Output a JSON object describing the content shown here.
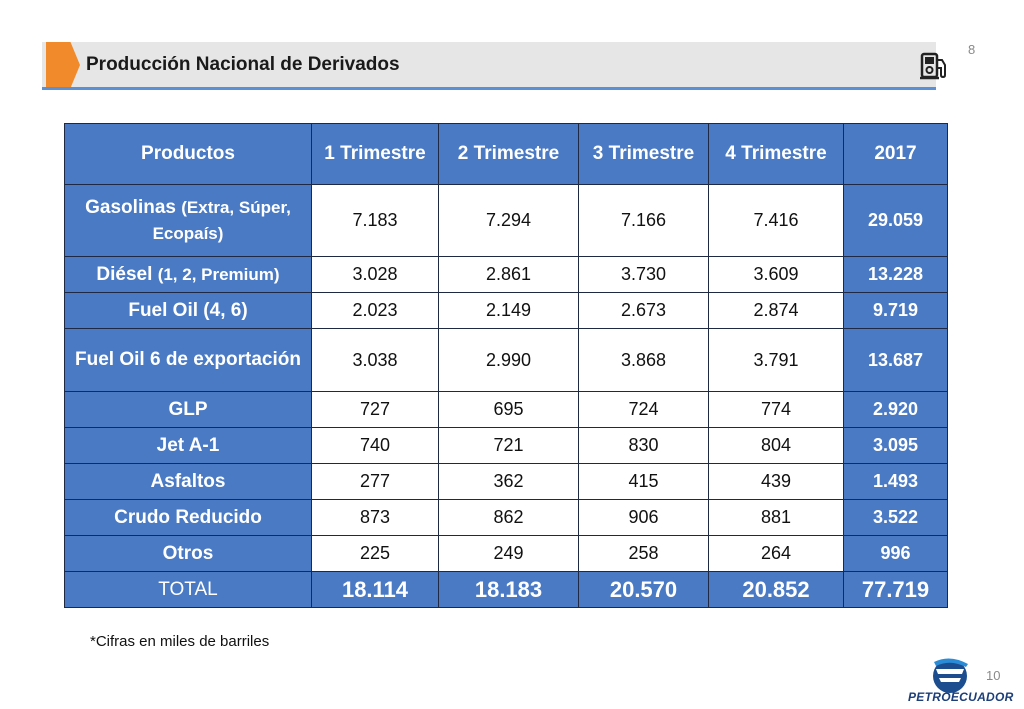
{
  "header": {
    "title": "Producción Nacional de Derivados",
    "page_number": "8",
    "icon": "fuel-pump-icon",
    "accent_color": "#f08a2a",
    "bar_color": "#e6e6e6"
  },
  "table": {
    "header_color": "#4a7ac4",
    "columns": [
      "Productos",
      "1 Trimestre",
      "2 Trimestre",
      "3 Trimestre",
      "4 Trimestre",
      "2017"
    ],
    "rows": [
      {
        "product": "Gasolinas",
        "product_detail": "(Extra, Súper, Ecopaís)",
        "q1": "7.183",
        "q2": "7.294",
        "q3": "7.166",
        "q4": "7.416",
        "total": "29.059"
      },
      {
        "product": "Diésel",
        "product_detail": "(1, 2, Premium)",
        "q1": "3.028",
        "q2": "2.861",
        "q3": "3.730",
        "q4": "3.609",
        "total": "13.228"
      },
      {
        "product": "Fuel Oil (4, 6)",
        "product_detail": "",
        "q1": "2.023",
        "q2": "2.149",
        "q3": "2.673",
        "q4": "2.874",
        "total": "9.719"
      },
      {
        "product": "Fuel Oil 6 de exportación",
        "product_detail": "",
        "q1": "3.038",
        "q2": "2.990",
        "q3": "3.868",
        "q4": "3.791",
        "total": "13.687"
      },
      {
        "product": "GLP",
        "product_detail": "",
        "q1": "727",
        "q2": "695",
        "q3": "724",
        "q4": "774",
        "total": "2.920"
      },
      {
        "product": "Jet A-1",
        "product_detail": "",
        "q1": "740",
        "q2": "721",
        "q3": "830",
        "q4": "804",
        "total": "3.095"
      },
      {
        "product": "Asfaltos",
        "product_detail": "",
        "q1": "277",
        "q2": "362",
        "q3": "415",
        "q4": "439",
        "total": "1.493"
      },
      {
        "product": "Crudo Reducido",
        "product_detail": "",
        "q1": "873",
        "q2": "862",
        "q3": "906",
        "q4": "881",
        "total": "3.522"
      },
      {
        "product": "Otros",
        "product_detail": "",
        "q1": "225",
        "q2": "249",
        "q3": "258",
        "q4": "264",
        "total": "996"
      }
    ],
    "total_row": {
      "product": "TOTAL",
      "q1": "18.114",
      "q2": "18.183",
      "q3": "20.570",
      "q4": "20.852",
      "total": "77.719"
    }
  },
  "footnote": "*Cifras en miles de barriles",
  "footer": {
    "page_number": "10",
    "logo_text": "PETROECUADOR",
    "logo_icon": "petroecuador-logo-icon"
  }
}
